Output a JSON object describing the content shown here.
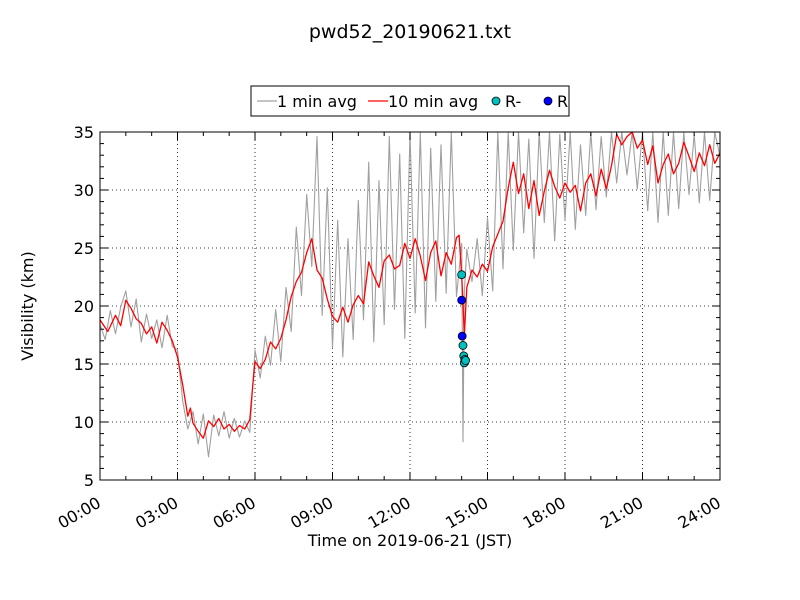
{
  "chart_data": {
    "type": "line",
    "title": "pwd52_20190621.txt",
    "xlabel": "Time on 2019-06-21 (JST)",
    "ylabel": "Visibility (km)",
    "xlim": [
      0,
      24
    ],
    "ylim": [
      5,
      35
    ],
    "x_ticks": [
      0,
      3,
      6,
      9,
      12,
      15,
      18,
      21,
      24
    ],
    "x_tick_labels": [
      "00:00",
      "03:00",
      "06:00",
      "09:00",
      "12:00",
      "15:00",
      "18:00",
      "21:00",
      "24:00"
    ],
    "y_ticks": [
      5,
      10,
      15,
      20,
      25,
      30,
      35
    ],
    "y_tick_labels": [
      "5",
      "10",
      "15",
      "20",
      "25",
      "30",
      "35"
    ],
    "grid": true,
    "legend_position": "top-center",
    "colors": {
      "one_min": "#a0a0a0",
      "ten_min": "#ff0000",
      "r_minus": "#00bfbf",
      "r": "#0000ff"
    },
    "series": [
      {
        "name": "10 min avg",
        "kind": "line",
        "color": "#ff0000",
        "x": [
          0,
          0.3,
          0.6,
          0.8,
          1.0,
          1.2,
          1.4,
          1.6,
          1.8,
          2.0,
          2.2,
          2.4,
          2.6,
          2.8,
          3.0,
          3.2,
          3.4,
          3.5,
          3.6,
          3.8,
          4.0,
          4.2,
          4.4,
          4.6,
          4.8,
          5.0,
          5.2,
          5.4,
          5.6,
          5.8,
          5.9,
          6.0,
          6.2,
          6.4,
          6.6,
          6.8,
          7.0,
          7.2,
          7.4,
          7.6,
          7.8,
          8.0,
          8.2,
          8.4,
          8.6,
          8.8,
          9.0,
          9.2,
          9.4,
          9.6,
          9.8,
          10.0,
          10.2,
          10.4,
          10.6,
          10.8,
          11.0,
          11.2,
          11.4,
          11.6,
          11.8,
          12.0,
          12.2,
          12.4,
          12.6,
          12.8,
          13.0,
          13.2,
          13.4,
          13.6,
          13.8,
          13.9,
          14.0,
          14.05,
          14.1,
          14.2,
          14.4,
          14.6,
          14.8,
          15.0,
          15.2,
          15.4,
          15.6,
          15.8,
          16.0,
          16.2,
          16.4,
          16.6,
          16.8,
          17.0,
          17.2,
          17.4,
          17.6,
          17.8,
          18.0,
          18.2,
          18.4,
          18.6,
          18.8,
          19.0,
          19.2,
          19.4,
          19.6,
          19.8,
          20.0,
          20.2,
          20.4,
          20.6,
          20.8,
          21.0,
          21.2,
          21.4,
          21.6,
          21.8,
          22.0,
          22.2,
          22.4,
          22.6,
          22.8,
          23.0,
          23.2,
          23.4,
          23.6,
          23.8,
          24.0
        ],
        "values": [
          18.8,
          17.8,
          19.2,
          18.3,
          20.5,
          19.8,
          18.9,
          18.5,
          17.6,
          18.2,
          16.8,
          18.6,
          17.9,
          17.0,
          15.6,
          13.2,
          10.5,
          11.2,
          9.9,
          9.2,
          8.6,
          10.1,
          9.6,
          10.3,
          9.4,
          9.8,
          9.2,
          9.7,
          9.4,
          10.2,
          12.8,
          15.2,
          14.6,
          15.4,
          16.9,
          16.3,
          17.2,
          18.8,
          20.8,
          22.1,
          22.9,
          24.6,
          25.8,
          23.1,
          22.4,
          20.6,
          19.1,
          18.6,
          19.9,
          18.6,
          20.1,
          20.9,
          20.2,
          23.8,
          22.6,
          21.6,
          23.9,
          24.4,
          23.2,
          23.5,
          25.4,
          24.1,
          25.8,
          24.3,
          22.2,
          24.6,
          25.6,
          22.6,
          24.6,
          23.6,
          25.9,
          26.1,
          22.6,
          20.3,
          17.4,
          21.6,
          23.1,
          22.5,
          23.6,
          23.0,
          25.1,
          26.2,
          27.3,
          30.2,
          32.4,
          29.7,
          31.4,
          28.4,
          30.8,
          27.8,
          29.9,
          31.7,
          30.3,
          29.3,
          30.6,
          29.8,
          30.4,
          28.2,
          30.6,
          31.4,
          29.5,
          31.8,
          30.1,
          32.1,
          34.8,
          33.9,
          34.6,
          35.0,
          33.6,
          34.3,
          32.2,
          33.8,
          30.6,
          32.2,
          33.1,
          31.4,
          32.3,
          34.1,
          32.9,
          31.6,
          33.2,
          32.1,
          33.9,
          32.3,
          33.2
        ]
      },
      {
        "name": "1 min avg",
        "kind": "line",
        "color": "#a0a0a0",
        "x": [
          0,
          0.2,
          0.4,
          0.6,
          0.8,
          1.0,
          1.2,
          1.4,
          1.6,
          1.8,
          2.0,
          2.2,
          2.4,
          2.6,
          2.8,
          3.0,
          3.2,
          3.4,
          3.6,
          3.8,
          4.0,
          4.2,
          4.4,
          4.6,
          4.8,
          5.0,
          5.2,
          5.4,
          5.6,
          5.8,
          6.0,
          6.2,
          6.4,
          6.6,
          6.8,
          7.0,
          7.2,
          7.4,
          7.6,
          7.8,
          8.0,
          8.2,
          8.4,
          8.6,
          8.8,
          9.0,
          9.2,
          9.4,
          9.6,
          9.8,
          10.0,
          10.2,
          10.4,
          10.6,
          10.8,
          11.0,
          11.2,
          11.4,
          11.6,
          11.8,
          12.0,
          12.2,
          12.4,
          12.6,
          12.8,
          13.0,
          13.2,
          13.4,
          13.6,
          13.8,
          14.0,
          14.05,
          14.1,
          14.2,
          14.4,
          14.6,
          14.8,
          15.0,
          15.2,
          15.4,
          15.6,
          15.8,
          16.0,
          16.2,
          16.4,
          16.6,
          16.8,
          17.0,
          17.2,
          17.4,
          17.6,
          17.8,
          18.0,
          18.2,
          18.4,
          18.6,
          18.8,
          19.0,
          19.2,
          19.4,
          19.6,
          19.8,
          20.0,
          20.2,
          20.4,
          20.6,
          20.8,
          21.0,
          21.2,
          21.4,
          21.6,
          21.8,
          22.0,
          22.2,
          22.4,
          22.6,
          22.8,
          23.0,
          23.2,
          23.4,
          23.6,
          23.8,
          24.0
        ],
        "values": [
          18.4,
          17.1,
          19.6,
          17.6,
          19.9,
          21.3,
          18.2,
          20.6,
          16.9,
          19.3,
          17.2,
          18.8,
          16.4,
          19.2,
          16.5,
          16.2,
          11.8,
          9.4,
          10.9,
          8.1,
          10.7,
          7.0,
          10.6,
          8.8,
          10.9,
          8.6,
          10.3,
          8.7,
          10.1,
          9.1,
          16.2,
          13.8,
          17.4,
          14.9,
          19.7,
          15.2,
          21.6,
          17.8,
          26.8,
          20.9,
          29.6,
          23.4,
          34.6,
          19.2,
          30.2,
          16.4,
          27.4,
          15.6,
          25.8,
          17.1,
          29.1,
          18.8,
          32.4,
          16.9,
          30.8,
          18.4,
          34.6,
          19.7,
          33.1,
          17.2,
          34.9,
          19.4,
          35.0,
          18.1,
          33.6,
          20.4,
          33.9,
          21.1,
          35.0,
          20.8,
          25.4,
          8.3,
          21.2,
          24.9,
          22.1,
          25.8,
          20.9,
          27.6,
          21.3,
          35.0,
          23.2,
          35.0,
          24.8,
          35.0,
          26.3,
          34.4,
          24.1,
          35.0,
          27.2,
          35.0,
          25.6,
          34.8,
          27.4,
          35.0,
          26.6,
          33.9,
          27.8,
          35.0,
          28.3,
          34.6,
          29.4,
          35.0,
          30.6,
          35.0,
          31.3,
          35.0,
          30.1,
          35.0,
          28.2,
          35.0,
          27.2,
          35.0,
          27.8,
          35.0,
          28.4,
          35.0,
          29.6,
          34.8,
          28.9,
          35.0,
          29.1,
          35.0,
          32.9
        ]
      },
      {
        "name": "R-",
        "kind": "scatter",
        "color": "#00bfbf",
        "x": [
          14.0,
          14.05,
          14.08,
          14.1,
          14.12,
          14.15
        ],
        "values": [
          22.7,
          16.6,
          15.7,
          15.1,
          15.4,
          15.3
        ]
      },
      {
        "name": "R",
        "kind": "scatter",
        "color": "#0000ff",
        "x": [
          14.0,
          14.02
        ],
        "values": [
          20.5,
          17.4
        ]
      }
    ],
    "legend": [
      {
        "label": "1 min avg",
        "kind": "line",
        "color": "#a0a0a0"
      },
      {
        "label": "10 min avg",
        "kind": "line",
        "color": "#ff0000"
      },
      {
        "label": "R-",
        "kind": "marker",
        "color": "#00bfbf"
      },
      {
        "label": "R",
        "kind": "marker",
        "color": "#0000ff"
      }
    ]
  }
}
